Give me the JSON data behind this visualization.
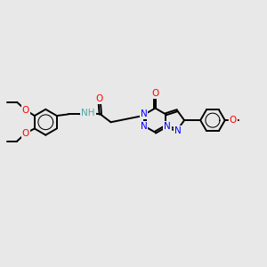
{
  "bg_color": "#e8e8e8",
  "bond_color": "#000000",
  "atom_colors": {
    "N": "#0000ff",
    "O": "#ff0000",
    "NH": "#4da6a6",
    "C": "#000000"
  },
  "figsize": [
    3.0,
    3.0
  ],
  "dpi": 100,
  "xlim": [
    0,
    14
  ],
  "ylim": [
    0,
    9
  ]
}
